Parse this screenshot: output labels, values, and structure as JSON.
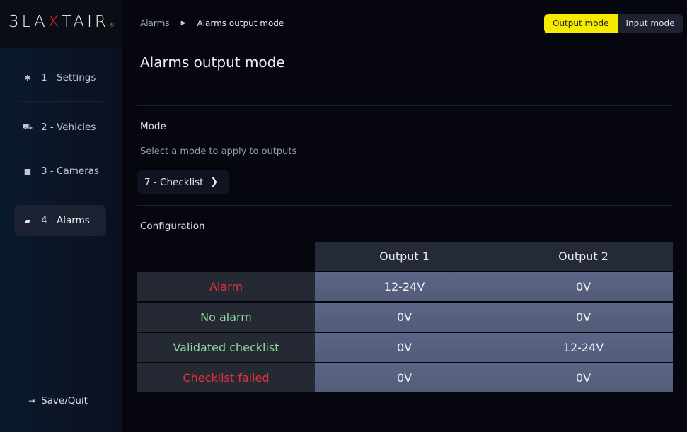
{
  "brand": {
    "logo_text_a": "3LA",
    "logo_text_x": "X",
    "logo_text_b": "TAIR",
    "logo_mark": "®",
    "accent": "#e3262e"
  },
  "sidebar": {
    "items": [
      {
        "label": "1 - Settings",
        "icon": "gear-icon",
        "active": false
      },
      {
        "label": "2 - Vehicles",
        "icon": "forklift-icon",
        "active": false
      },
      {
        "label": "3 - Cameras",
        "icon": "video-camera-icon",
        "active": false
      },
      {
        "label": "4 - Alarms",
        "icon": "alarm-light-icon",
        "active": true
      }
    ],
    "save_quit": "Save/Quit"
  },
  "breadcrumb": {
    "parent": "Alarms",
    "current": "Alarms output mode"
  },
  "mode_toggle": {
    "output": "Output mode",
    "input": "Input mode",
    "selected": "output",
    "active_color": "#f5ea00"
  },
  "page_title": "Alarms output mode",
  "mode": {
    "label": "Mode",
    "hint": "Select a mode to apply to outputs",
    "selected": "7 - Checklist"
  },
  "configuration": {
    "label": "Configuration",
    "columns": [
      "Output 1",
      "Output 2"
    ],
    "rows": [
      {
        "name": "Alarm",
        "color": "red",
        "values": [
          "12-24V",
          "0V"
        ]
      },
      {
        "name": "No alarm",
        "color": "green",
        "values": [
          "0V",
          "0V"
        ]
      },
      {
        "name": "Validated checklist",
        "color": "green",
        "values": [
          "0V",
          "12-24V"
        ]
      },
      {
        "name": "Checklist failed",
        "color": "red",
        "values": [
          "0V",
          "0V"
        ]
      }
    ]
  }
}
